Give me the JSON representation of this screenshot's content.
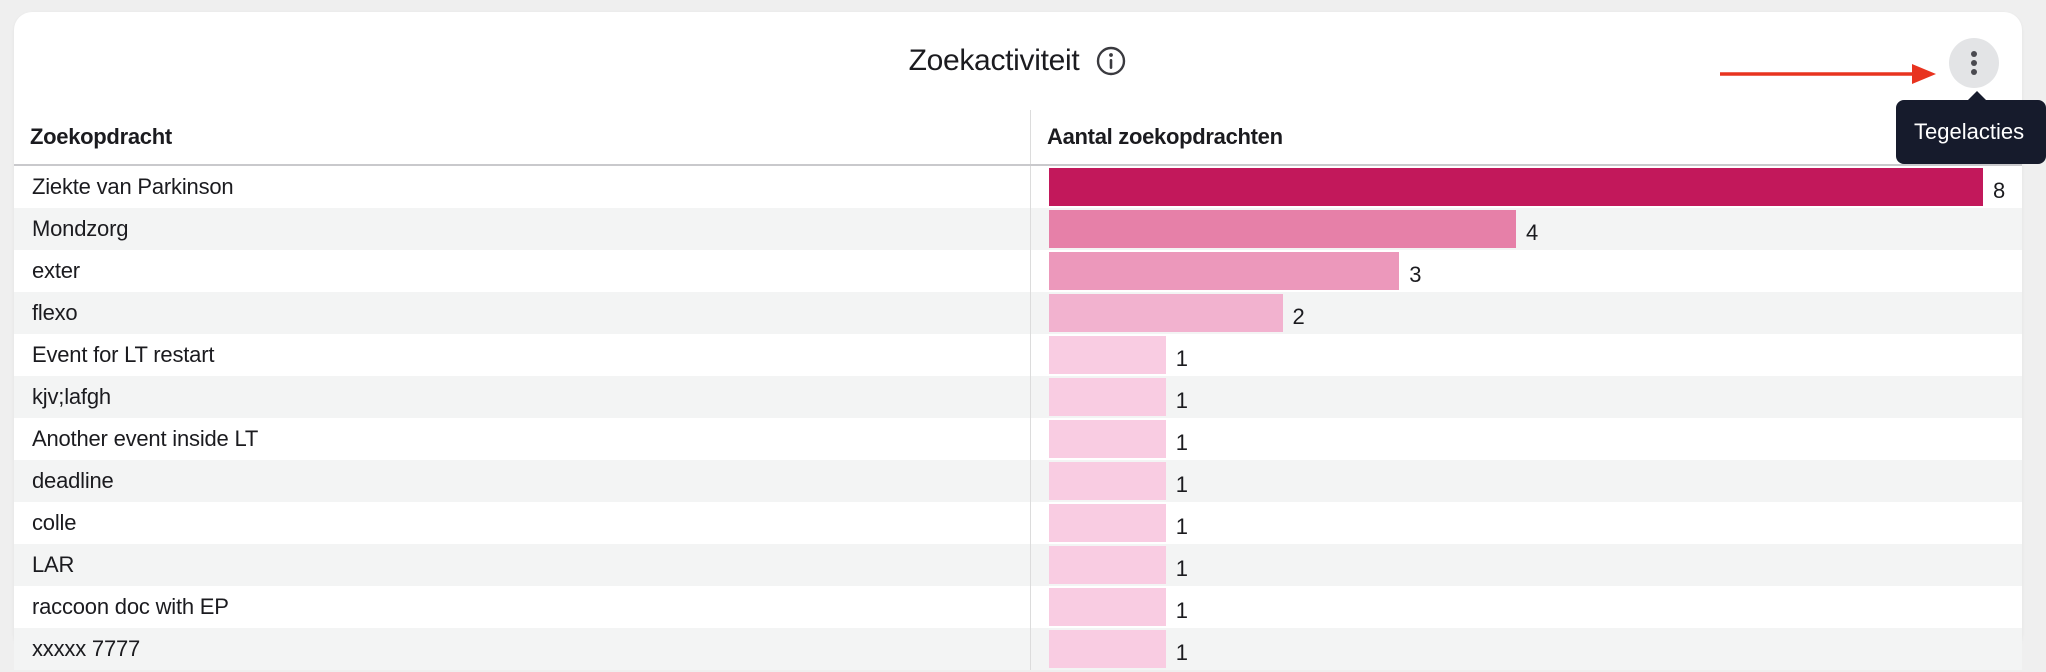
{
  "tile": {
    "title": "Zoekactiviteit",
    "info_icon": "info-circle-icon",
    "menu_icon": "more-vertical-icon",
    "annotation_arrow_color": "#e8331f",
    "tooltip": "Tegelacties"
  },
  "table": {
    "headers": [
      "Zoekopdracht",
      "Aantal zoekopdrachten"
    ],
    "rows": [
      {
        "term": "Ziekte van Parkinson",
        "count": "8",
        "bar_color": "#c2185b"
      },
      {
        "term": "Mondzorg",
        "count": "4",
        "bar_color": "#e680a8"
      },
      {
        "term": "exter",
        "count": "3",
        "bar_color": "#ec98bb"
      },
      {
        "term": "flexo",
        "count": "2",
        "bar_color": "#f2b2cf"
      },
      {
        "term": "Event for LT restart",
        "count": "1",
        "bar_color": "#f9cce2"
      },
      {
        "term": "kjv;lafgh",
        "count": "1",
        "bar_color": "#f9cce2"
      },
      {
        "term": "Another event inside LT",
        "count": "1",
        "bar_color": "#f9cce2"
      },
      {
        "term": "deadline",
        "count": "1",
        "bar_color": "#f9cce2"
      },
      {
        "term": "colle",
        "count": "1",
        "bar_color": "#f9cce2"
      },
      {
        "term": "LAR",
        "count": "1",
        "bar_color": "#f9cce2"
      },
      {
        "term": "raccoon doc with EP",
        "count": "1",
        "bar_color": "#f9cce2"
      },
      {
        "term": "xxxxx 7777",
        "count": "1",
        "bar_color": "#f9cce2"
      }
    ],
    "max_count": 8
  }
}
